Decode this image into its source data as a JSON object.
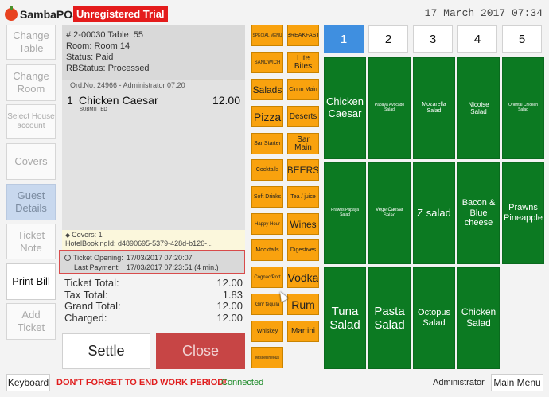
{
  "header": {
    "app_name": "SambaPOS",
    "trial_badge": "Unregistered Trial",
    "datetime": "17 March 2017 07:34"
  },
  "left_buttons": [
    {
      "label": "Change Table"
    },
    {
      "label": "Change Room"
    },
    {
      "label": "Select House account"
    },
    {
      "label": "Covers"
    },
    {
      "label": "Guest Details"
    },
    {
      "label": "Ticket Note"
    },
    {
      "label": "Print Bill"
    },
    {
      "label": "Add Ticket"
    }
  ],
  "ticket": {
    "header_lines": [
      "# 2-00030 Table: 55",
      "Room: Room 14",
      "Status: Paid",
      "RBStatus: Processed"
    ],
    "order_no": "Ord.No: 24966 - Administrator 07:20",
    "order": {
      "qty": "1",
      "name": "Chicken Caesar",
      "price": "12.00",
      "status": "SUBMITTED"
    },
    "covers": "Covers: 1",
    "booking": "HotelBookingId: d4890695-5379-428d-b126-...",
    "opening_label": "Ticket Opening:",
    "opening_value": "17/03/2017 07:20:07",
    "last_payment_label": "Last Payment:",
    "last_payment_value": "17/03/2017 07:23:51 (4 min.)",
    "totals": [
      {
        "label": "Ticket Total:",
        "value": "12.00"
      },
      {
        "label": "Tax Total:",
        "value": "1.83"
      },
      {
        "label": "Grand Total:",
        "value": "12.00"
      },
      {
        "label": "Charged:",
        "value": "12.00"
      }
    ],
    "settle_label": "Settle",
    "close_label": "Close"
  },
  "categories_col1": [
    "SPECIAL MENU",
    "SANDWICH",
    "Salads",
    "Pizza",
    "Sar Starter",
    "Cocktails",
    "Soft Drinks",
    "Happy Hour",
    "Mocktails",
    "Cognac/Port",
    "Gin/ tequila",
    "Whiskey",
    "Miscellineous"
  ],
  "categories_col2": [
    "BREAKFAST",
    "Lite Bites",
    "Cinnn Main",
    "Deserts",
    "Sar Main",
    "BEERS",
    "Tea / juice",
    "Wines",
    "Digestives",
    "Vodka",
    "Rum",
    "Martini"
  ],
  "pages": [
    "1",
    "2",
    "3",
    "4",
    "5"
  ],
  "menu_items": [
    [
      "Chicken Caesar",
      "Papaya Avocado Salad",
      "Mozarella Salad",
      "Nicoise Salad",
      "Oriental Chicken Salad"
    ],
    [
      "Prawns Papaya Salad",
      "Vege Caesar Salad",
      "Z salad",
      "Bacon & Blue cheese",
      "Prawns Pineapple"
    ],
    [
      "Tuna Salad",
      "Pasta Salad",
      "Octopus Salad",
      "Chicken Salad",
      ""
    ]
  ],
  "footer": {
    "keyboard": "Keyboard",
    "warning": "DON'T FORGET TO END WORK PERIOD!",
    "connected": "Connected",
    "user": "Administrator",
    "main_menu": "Main Menu"
  },
  "colors": {
    "category": "#f9a20e",
    "menu_item": "#0c7a22",
    "active_page": "#3f8fe0",
    "close_button": "#c74545",
    "warning": "#e01e1e",
    "trial_badge": "#e41b1b"
  }
}
